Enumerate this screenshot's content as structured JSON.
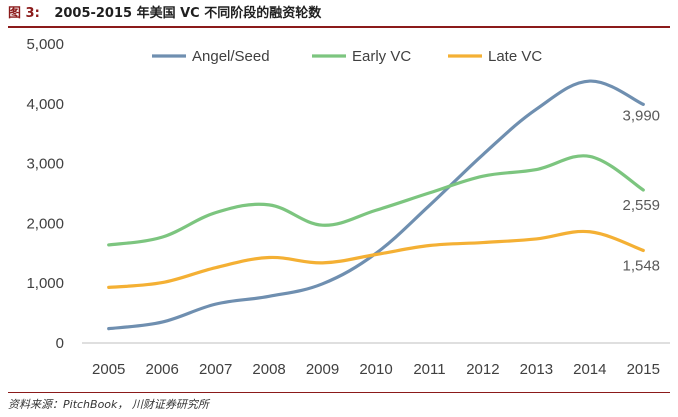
{
  "figure": {
    "label": "图 3:",
    "title": "2005-2015 年美国 VC 不同阶段的融资轮数",
    "source": "资料来源：PitchBook，  川财证券研究所"
  },
  "chart_data": {
    "type": "line",
    "title": "2005-2015 年美国 VC 不同阶段的融资轮数",
    "xlabel": "",
    "ylabel": "",
    "categories": [
      "2005",
      "2006",
      "2007",
      "2008",
      "2009",
      "2010",
      "2011",
      "2012",
      "2013",
      "2014",
      "2015"
    ],
    "ylim": [
      0,
      5000
    ],
    "yticks": [
      0,
      1000,
      2000,
      3000,
      4000,
      5000
    ],
    "ytick_labels": [
      "0",
      "1,000",
      "2,000",
      "3,000",
      "4,000",
      "5,000"
    ],
    "legend_position": "top",
    "series": [
      {
        "name": "Angel/Seed",
        "color": "#6f8fb0",
        "values": [
          240,
          350,
          650,
          780,
          990,
          1500,
          2300,
          3150,
          3910,
          4380,
          3990
        ],
        "end_label": "3,990"
      },
      {
        "name": "Early VC",
        "color": "#7cc57f",
        "values": [
          1640,
          1770,
          2180,
          2310,
          1970,
          2220,
          2510,
          2790,
          2900,
          3120,
          2559
        ],
        "end_label": "2,559"
      },
      {
        "name": "Late VC",
        "color": "#f4b034",
        "values": [
          930,
          1010,
          1260,
          1430,
          1340,
          1480,
          1630,
          1680,
          1740,
          1860,
          1548
        ],
        "end_label": "1,548"
      }
    ]
  }
}
